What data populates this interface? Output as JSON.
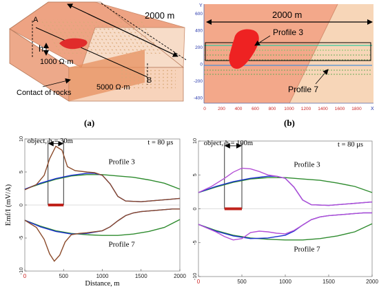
{
  "panel_a": {
    "caption": "(a)",
    "length_label": "2000 m",
    "point_a": "A",
    "point_b": "B",
    "h_label": "h",
    "rho_1": "1000 Ω·m",
    "rho_2": "5000 Ω·m",
    "contact_label": "Contact of rocks"
  },
  "panel_b": {
    "caption": "(b)",
    "length_label": "2000 m",
    "profile_3": "Profile 3",
    "profile_7": "Profile 7",
    "x_axis_letter": "X",
    "y_axis_letter": "Y",
    "x_ticks": [
      "0",
      "200",
      "400",
      "600",
      "800",
      "1000",
      "1200",
      "1400",
      "1600",
      "1800"
    ],
    "y_ticks": [
      "600",
      "400",
      "200",
      "0",
      "-200",
      "-400"
    ]
  },
  "chart_data": [
    {
      "type": "line",
      "panel": "left",
      "annotation_object": "object, h = 30m",
      "annotation_time": "t = 80 μs",
      "ylabel": "Emf/I (mV/A)",
      "xlabel": "Distance, m",
      "xlim": [
        0,
        2000
      ],
      "ylim": [
        -10,
        10
      ],
      "x_ticks": [
        "0",
        "500",
        "1000",
        "1500",
        "2000"
      ],
      "y_ticks": [
        "10",
        "5",
        "0",
        "-5",
        "-10"
      ],
      "profile_labels": [
        "Profile 3",
        "Profile 7"
      ],
      "object_extent": [
        300,
        500
      ],
      "series": [
        {
          "color": "#2e8b2e",
          "x": [
            0,
            200,
            400,
            600,
            800,
            1000,
            1200,
            1400,
            1600,
            1800,
            2000
          ],
          "y": [
            2.4,
            3.2,
            3.9,
            4.4,
            4.6,
            4.6,
            4.4,
            4.2,
            3.8,
            3.3,
            2.4
          ]
        },
        {
          "color": "#1a2fd0",
          "x": [
            0,
            200,
            400,
            600,
            800,
            900,
            1000,
            1100,
            1200,
            1300,
            1500,
            1700,
            1900,
            2000
          ],
          "y": [
            2.4,
            3.3,
            4.0,
            4.5,
            4.8,
            4.8,
            4.5,
            3.2,
            1.3,
            0.6,
            0.5,
            0.7,
            0.9,
            1.0
          ]
        },
        {
          "color": "#8b4a2a",
          "x": [
            0,
            150,
            250,
            320,
            400,
            480,
            550,
            650,
            800,
            900,
            1000,
            1100,
            1200,
            1300,
            1500,
            1700,
            1900,
            2000
          ],
          "y": [
            2.3,
            3.1,
            4.5,
            7.0,
            8.9,
            8.3,
            5.8,
            5.2,
            5.0,
            4.9,
            4.5,
            3.2,
            1.3,
            0.6,
            0.5,
            0.7,
            0.9,
            1.0
          ]
        },
        {
          "color": "#2e8b2e",
          "x": [
            0,
            200,
            400,
            600,
            800,
            1000,
            1200,
            1400,
            1600,
            1800,
            2000
          ],
          "y": [
            -2.3,
            -3.2,
            -3.9,
            -4.3,
            -4.5,
            -4.6,
            -4.6,
            -4.4,
            -4.0,
            -3.4,
            -2.2
          ]
        },
        {
          "color": "#1a2fd0",
          "x": [
            0,
            200,
            400,
            600,
            800,
            1000,
            1100,
            1200,
            1300,
            1400,
            1500,
            1700,
            1900,
            2000
          ],
          "y": [
            -2.3,
            -3.3,
            -4.0,
            -4.4,
            -4.3,
            -3.9,
            -3.3,
            -2.4,
            -1.6,
            -1.2,
            -1.0,
            -0.8,
            -0.6,
            -0.6
          ]
        },
        {
          "color": "#8b4a2a",
          "x": [
            0,
            150,
            250,
            320,
            380,
            450,
            520,
            600,
            700,
            800,
            1000,
            1100,
            1200,
            1300,
            1400,
            1500,
            1700,
            1900,
            2000
          ],
          "y": [
            -2.3,
            -3.4,
            -5.2,
            -7.4,
            -8.5,
            -7.6,
            -5.6,
            -4.5,
            -4.3,
            -4.2,
            -3.9,
            -3.3,
            -2.4,
            -1.6,
            -1.2,
            -1.0,
            -0.8,
            -0.6,
            -0.6
          ]
        }
      ]
    },
    {
      "type": "line",
      "panel": "right",
      "annotation_object": "object, h = 100m",
      "annotation_time": "t = 80 μs",
      "ylabel": "",
      "xlabel": "",
      "xlim": [
        0,
        2000
      ],
      "ylim": [
        -10,
        10
      ],
      "x_ticks": [
        "0",
        "500",
        "1000",
        "1500",
        "2000"
      ],
      "y_ticks": [
        "10",
        "5",
        "0",
        "-5",
        "-10"
      ],
      "profile_labels": [
        "Profile 3",
        "Profile 7"
      ],
      "object_extent": [
        300,
        500
      ],
      "series": [
        {
          "color": "#2e8b2e",
          "x": [
            0,
            200,
            400,
            600,
            800,
            1000,
            1200,
            1400,
            1600,
            1800,
            2000
          ],
          "y": [
            2.4,
            3.2,
            3.9,
            4.4,
            4.6,
            4.6,
            4.4,
            4.2,
            3.8,
            3.3,
            2.4
          ]
        },
        {
          "color": "#1a2fd0",
          "x": [
            0,
            200,
            400,
            600,
            800,
            900,
            1000,
            1100,
            1200,
            1300,
            1500,
            1700,
            1900,
            2000
          ],
          "y": [
            2.4,
            3.3,
            4.0,
            4.5,
            4.8,
            4.8,
            4.5,
            3.2,
            1.3,
            0.6,
            0.5,
            0.7,
            0.9,
            1.0
          ]
        },
        {
          "color": "#b34fd6",
          "x": [
            0,
            150,
            300,
            400,
            500,
            600,
            700,
            800,
            900,
            1000,
            1100,
            1200,
            1300,
            1500,
            1700,
            1900,
            2000
          ],
          "y": [
            2.4,
            3.3,
            4.5,
            5.4,
            6.0,
            5.9,
            5.5,
            5.0,
            4.8,
            4.5,
            3.2,
            1.3,
            0.6,
            0.5,
            0.7,
            0.9,
            1.0
          ]
        },
        {
          "color": "#2e8b2e",
          "x": [
            0,
            200,
            400,
            600,
            800,
            1000,
            1200,
            1400,
            1600,
            1800,
            2000
          ],
          "y": [
            -2.3,
            -3.2,
            -3.9,
            -4.3,
            -4.5,
            -4.6,
            -4.6,
            -4.4,
            -4.0,
            -3.4,
            -2.2
          ]
        },
        {
          "color": "#1a2fd0",
          "x": [
            0,
            200,
            400,
            600,
            800,
            1000,
            1100,
            1200,
            1300,
            1400,
            1500,
            1700,
            1900,
            2000
          ],
          "y": [
            -2.3,
            -3.3,
            -4.0,
            -4.4,
            -4.3,
            -3.9,
            -3.3,
            -2.4,
            -1.6,
            -1.2,
            -1.0,
            -0.8,
            -0.6,
            -0.6
          ]
        },
        {
          "color": "#b34fd6",
          "x": [
            0,
            200,
            300,
            400,
            500,
            600,
            700,
            800,
            900,
            1000,
            1100,
            1200,
            1300,
            1400,
            1500,
            1700,
            1900,
            2000
          ],
          "y": [
            -2.3,
            -3.4,
            -4.1,
            -4.6,
            -4.4,
            -3.5,
            -3.3,
            -3.4,
            -3.6,
            -3.7,
            -3.2,
            -2.4,
            -1.6,
            -1.2,
            -1.0,
            -0.8,
            -0.6,
            -0.6
          ]
        }
      ]
    }
  ]
}
